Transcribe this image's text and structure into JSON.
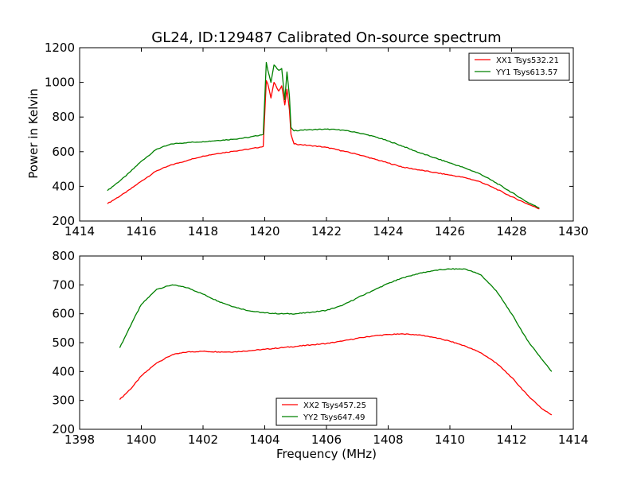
{
  "figure": {
    "title": "GL24, ID:129487 Calibrated On-source spectrum",
    "xlabel": "Frequency (MHz)",
    "colors": {
      "red": "#ff0000",
      "green": "#008000",
      "frame": "#000000"
    }
  },
  "chart_data": [
    {
      "type": "line",
      "title": "GL24, ID:129487 Calibrated On-source spectrum",
      "xlabel": "",
      "ylabel": "Power in Kelvin",
      "xlim": [
        1414,
        1430
      ],
      "ylim": [
        200,
        1200
      ],
      "xticks": [
        1414,
        1416,
        1418,
        1420,
        1422,
        1424,
        1426,
        1428,
        1430
      ],
      "yticks": [
        200,
        400,
        600,
        800,
        1000,
        1200
      ],
      "grid": false,
      "legend_position": "top-right",
      "series": [
        {
          "name": "XX1 Tsys532.21",
          "color": "#ff0000",
          "x": [
            1414.9,
            1415.5,
            1416.0,
            1416.5,
            1417.0,
            1417.5,
            1418.0,
            1418.5,
            1419.0,
            1419.5,
            1419.95,
            1420.05,
            1420.1,
            1420.2,
            1420.3,
            1420.45,
            1420.55,
            1420.65,
            1420.72,
            1420.8,
            1420.85,
            1420.95,
            1421.2,
            1421.5,
            1422.0,
            1422.5,
            1423.0,
            1423.5,
            1424.0,
            1424.5,
            1425.0,
            1425.5,
            1426.0,
            1426.5,
            1427.0,
            1427.5,
            1428.0,
            1428.5,
            1428.9
          ],
          "values": [
            300,
            365,
            430,
            490,
            525,
            550,
            575,
            590,
            603,
            615,
            630,
            1010,
            990,
            910,
            1000,
            950,
            980,
            870,
            960,
            840,
            700,
            645,
            640,
            635,
            625,
            605,
            585,
            560,
            535,
            510,
            495,
            480,
            465,
            450,
            425,
            385,
            340,
            300,
            270
          ]
        },
        {
          "name": "YY1 Tsys613.57",
          "color": "#008000",
          "x": [
            1414.9,
            1415.5,
            1416.0,
            1416.5,
            1417.0,
            1417.5,
            1418.0,
            1418.5,
            1419.0,
            1419.5,
            1419.95,
            1420.05,
            1420.1,
            1420.2,
            1420.3,
            1420.45,
            1420.55,
            1420.65,
            1420.72,
            1420.8,
            1420.85,
            1420.95,
            1421.2,
            1421.5,
            1422.0,
            1422.5,
            1423.0,
            1423.5,
            1424.0,
            1424.5,
            1425.0,
            1425.5,
            1426.0,
            1426.5,
            1427.0,
            1427.5,
            1428.0,
            1428.5,
            1428.9
          ],
          "values": [
            375,
            460,
            545,
            615,
            645,
            653,
            658,
            665,
            672,
            683,
            700,
            1115,
            1070,
            1000,
            1100,
            1070,
            1080,
            900,
            1060,
            920,
            740,
            720,
            725,
            727,
            730,
            725,
            710,
            690,
            662,
            630,
            595,
            565,
            535,
            505,
            470,
            420,
            365,
            310,
            275
          ]
        }
      ]
    },
    {
      "type": "line",
      "title": "",
      "xlabel": "Frequency (MHz)",
      "ylabel": "",
      "xlim": [
        1398,
        1414
      ],
      "ylim": [
        200,
        800
      ],
      "xticks": [
        1398,
        1400,
        1402,
        1404,
        1406,
        1408,
        1410,
        1412,
        1414
      ],
      "yticks": [
        200,
        300,
        400,
        500,
        600,
        700,
        800
      ],
      "grid": false,
      "legend_position": "bottom-center",
      "series": [
        {
          "name": "XX2 Tsys457.25",
          "color": "#ff0000",
          "x": [
            1399.3,
            1399.7,
            1400.0,
            1400.5,
            1401.0,
            1401.5,
            1402.0,
            1402.5,
            1403.0,
            1403.5,
            1404.0,
            1404.5,
            1405.0,
            1405.5,
            1406.0,
            1406.5,
            1407.0,
            1407.5,
            1408.0,
            1408.5,
            1409.0,
            1409.5,
            1410.0,
            1410.5,
            1411.0,
            1411.5,
            1412.0,
            1412.5,
            1413.0,
            1413.3
          ],
          "values": [
            303,
            345,
            385,
            430,
            458,
            468,
            470,
            468,
            468,
            472,
            477,
            482,
            487,
            492,
            497,
            505,
            515,
            523,
            528,
            530,
            527,
            518,
            505,
            488,
            465,
            430,
            380,
            320,
            270,
            250
          ]
        },
        {
          "name": "YY2 Tsys647.49",
          "color": "#008000",
          "x": [
            1399.3,
            1399.7,
            1400.0,
            1400.5,
            1401.0,
            1401.5,
            1402.0,
            1402.5,
            1403.0,
            1403.5,
            1404.0,
            1404.5,
            1405.0,
            1405.5,
            1406.0,
            1406.5,
            1407.0,
            1407.5,
            1408.0,
            1408.5,
            1409.0,
            1409.5,
            1410.0,
            1410.5,
            1411.0,
            1411.5,
            1412.0,
            1412.5,
            1413.0,
            1413.3
          ],
          "values": [
            482,
            570,
            632,
            685,
            700,
            690,
            668,
            643,
            624,
            610,
            603,
            600,
            600,
            605,
            612,
            628,
            655,
            680,
            705,
            725,
            740,
            750,
            755,
            755,
            735,
            680,
            600,
            510,
            440,
            400
          ]
        }
      ]
    }
  ]
}
